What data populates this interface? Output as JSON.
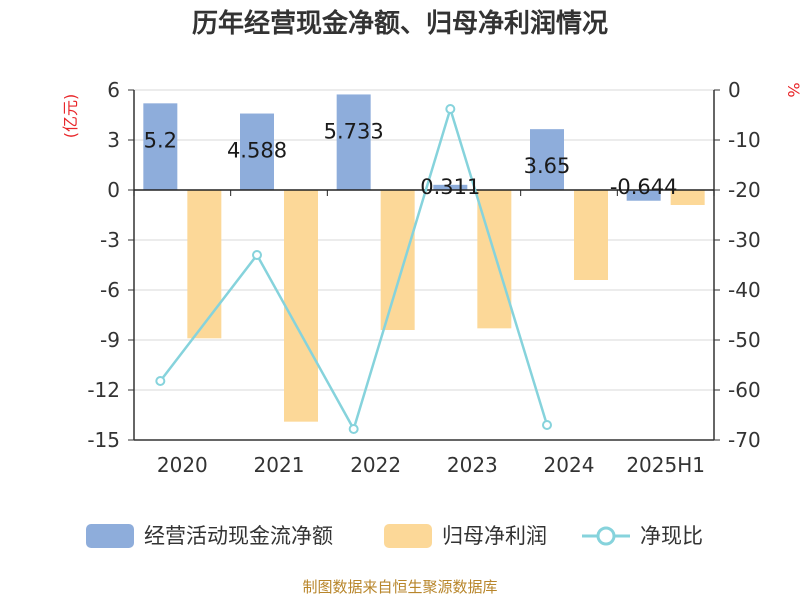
{
  "chart_data": {
    "type": "bar",
    "title": "历年经营现金净额、归母净利润情况",
    "categories": [
      "2020",
      "2021",
      "2022",
      "2023",
      "2024",
      "2025H1"
    ],
    "series": [
      {
        "name": "经营活动现金流净额",
        "type": "bar",
        "axis": "left",
        "color": "#8eaddb",
        "values": [
          5.2,
          4.588,
          5.733,
          0.311,
          3.65,
          -0.644
        ],
        "labels": [
          "5.2",
          "4.588",
          "5.733",
          "0.311",
          "3.65",
          "-0.644"
        ]
      },
      {
        "name": "归母净利润",
        "type": "bar",
        "axis": "left",
        "color": "#fcd898",
        "values": [
          -8.9,
          -13.9,
          -8.4,
          -8.3,
          -5.4,
          -0.9
        ]
      },
      {
        "name": "净现比",
        "type": "line",
        "axis": "right",
        "color": "#86d3dc",
        "values": [
          -58.2,
          -33.0,
          -67.8,
          -3.8,
          -67.0,
          null
        ]
      }
    ],
    "y_left": {
      "unit": "(亿元)",
      "min": -15,
      "max": 6,
      "ticks": [
        6,
        3,
        0,
        -3,
        -6,
        -9,
        -12,
        -15
      ]
    },
    "y_right": {
      "unit": "%",
      "min": -70,
      "max": 0,
      "ticks": [
        0,
        -10,
        -20,
        -30,
        -40,
        -50,
        -60,
        -70
      ]
    },
    "grid": true,
    "legend_position": "bottom",
    "source": "制图数据来自恒生聚源数据库"
  }
}
